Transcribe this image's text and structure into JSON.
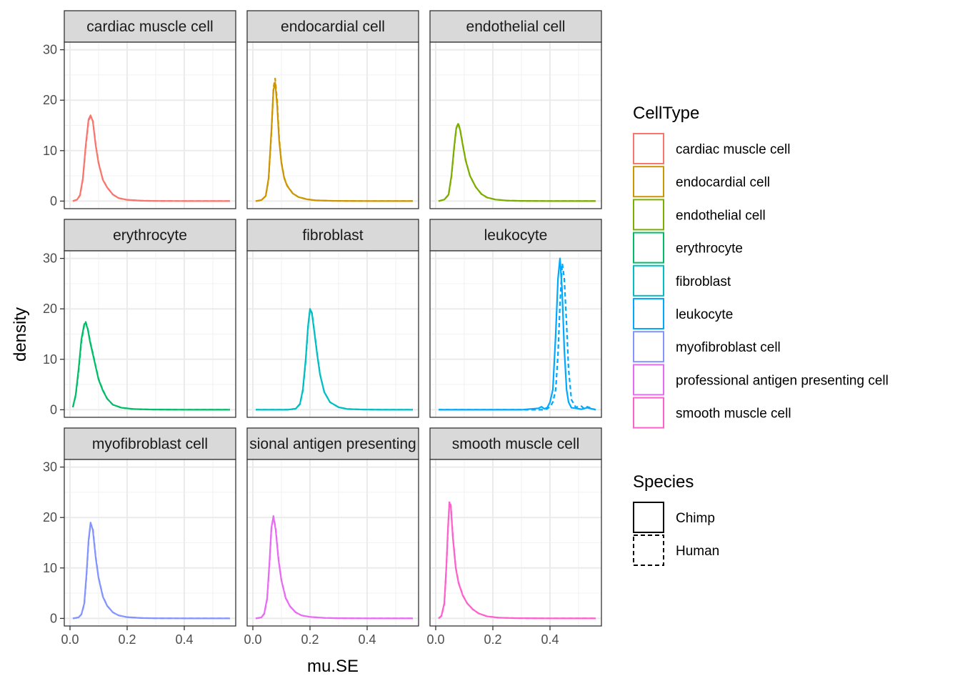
{
  "chart_data": {
    "type": "line",
    "subtype": "density-facets",
    "title": "",
    "xlabel": "mu.SE",
    "ylabel": "density",
    "xlim": [
      -0.02,
      0.58
    ],
    "ylim": [
      -1.5,
      31.5
    ],
    "x_ticks": [
      0.0,
      0.2,
      0.4
    ],
    "x_tick_labels": [
      "0.0",
      "0.2",
      "0.4"
    ],
    "y_ticks": [
      0,
      10,
      20,
      30
    ],
    "y_tick_labels": [
      "0",
      "10",
      "20",
      "30"
    ],
    "grid": true,
    "legend_position": "right",
    "facets": [
      {
        "label": "cardiac muscle cell",
        "series": [
          {
            "name": "Chimp",
            "x": [
              0.01,
              0.025,
              0.035,
              0.045,
              0.055,
              0.065,
              0.072,
              0.08,
              0.09,
              0.1,
              0.115,
              0.13,
              0.15,
              0.17,
              0.2,
              0.25,
              0.3,
              0.4,
              0.5,
              0.56
            ],
            "y": [
              0,
              0.3,
              1.2,
              4.5,
              11,
              16.2,
              17,
              15.8,
              11,
              7.5,
              4.2,
              2.7,
              1.3,
              0.6,
              0.25,
              0.08,
              0.03,
              0.01,
              0,
              0
            ]
          },
          {
            "name": "Human",
            "x": [
              0.01,
              0.025,
              0.035,
              0.045,
              0.055,
              0.065,
              0.072,
              0.08,
              0.09,
              0.1,
              0.115,
              0.13,
              0.15,
              0.17,
              0.2,
              0.25,
              0.3,
              0.4,
              0.5,
              0.56
            ],
            "y": [
              0,
              0.3,
              1.1,
              4.3,
              10.6,
              15.9,
              16.8,
              15.9,
              11.2,
              7.6,
              4.3,
              2.7,
              1.3,
              0.6,
              0.25,
              0.08,
              0.03,
              0.01,
              0,
              0
            ]
          }
        ]
      },
      {
        "label": "endocardial cell",
        "series": [
          {
            "name": "Chimp",
            "x": [
              0.01,
              0.03,
              0.045,
              0.055,
              0.065,
              0.072,
              0.078,
              0.085,
              0.092,
              0.1,
              0.11,
              0.12,
              0.14,
              0.16,
              0.19,
              0.22,
              0.28,
              0.35,
              0.45,
              0.56
            ],
            "y": [
              0,
              0.2,
              1,
              4.5,
              14,
              22,
              23.5,
              19,
              12,
              7.5,
              4.5,
              3,
              1.5,
              0.8,
              0.35,
              0.15,
              0.05,
              0.02,
              0,
              0
            ]
          },
          {
            "name": "Human",
            "x": [
              0.01,
              0.03,
              0.045,
              0.055,
              0.065,
              0.072,
              0.078,
              0.085,
              0.092,
              0.1,
              0.11,
              0.12,
              0.14,
              0.16,
              0.19,
              0.22,
              0.28,
              0.35,
              0.45,
              0.56
            ],
            "y": [
              0,
              0.2,
              1,
              4.2,
              13.5,
              22.5,
              24.3,
              20,
              12.5,
              7.7,
              4.6,
              3.1,
              1.5,
              0.8,
              0.35,
              0.15,
              0.05,
              0.02,
              0,
              0
            ]
          }
        ]
      },
      {
        "label": "endothelial cell",
        "series": [
          {
            "name": "Chimp",
            "x": [
              0.01,
              0.03,
              0.045,
              0.055,
              0.065,
              0.072,
              0.078,
              0.085,
              0.095,
              0.105,
              0.12,
              0.14,
              0.16,
              0.18,
              0.21,
              0.25,
              0.3,
              0.4,
              0.5,
              0.56
            ],
            "y": [
              0,
              0.3,
              1.3,
              5,
              11,
              14.5,
              15.3,
              14.2,
              11,
              8,
              5,
              2.8,
              1.4,
              0.7,
              0.3,
              0.1,
              0.04,
              0.01,
              0,
              0
            ]
          },
          {
            "name": "Human",
            "x": [
              0.01,
              0.03,
              0.045,
              0.055,
              0.065,
              0.072,
              0.078,
              0.085,
              0.095,
              0.105,
              0.12,
              0.14,
              0.16,
              0.18,
              0.21,
              0.25,
              0.3,
              0.4,
              0.5,
              0.56
            ],
            "y": [
              0,
              0.3,
              1.2,
              4.8,
              10.8,
              14.3,
              15.5,
              14.4,
              11.1,
              8.1,
              5,
              2.8,
              1.4,
              0.7,
              0.3,
              0.1,
              0.04,
              0.01,
              0,
              0
            ]
          }
        ]
      },
      {
        "label": "erythrocyte",
        "series": [
          {
            "name": "Chimp",
            "x": [
              0.01,
              0.02,
              0.03,
              0.04,
              0.05,
              0.055,
              0.062,
              0.07,
              0.08,
              0.09,
              0.1,
              0.115,
              0.13,
              0.15,
              0.18,
              0.22,
              0.28,
              0.35,
              0.45,
              0.56
            ],
            "y": [
              0.5,
              3,
              8,
              14,
              17,
              17.2,
              16,
              13.5,
              11,
              8.5,
              6,
              3.8,
              2.2,
              1,
              0.4,
              0.15,
              0.05,
              0.02,
              0,
              0
            ]
          },
          {
            "name": "Human",
            "x": [
              0.01,
              0.02,
              0.03,
              0.04,
              0.05,
              0.055,
              0.062,
              0.07,
              0.08,
              0.09,
              0.1,
              0.115,
              0.13,
              0.15,
              0.18,
              0.22,
              0.28,
              0.35,
              0.45,
              0.56
            ],
            "y": [
              0.5,
              2.8,
              7.6,
              13.6,
              16.8,
              17.4,
              16.2,
              13.7,
              11.2,
              8.6,
              6.1,
              3.9,
              2.2,
              1,
              0.4,
              0.15,
              0.05,
              0.02,
              0,
              0
            ]
          }
        ]
      },
      {
        "label": "fibroblast",
        "series": [
          {
            "name": "Chimp",
            "x": [
              0.01,
              0.12,
              0.15,
              0.165,
              0.175,
              0.185,
              0.193,
              0.2,
              0.207,
              0.215,
              0.225,
              0.235,
              0.25,
              0.27,
              0.3,
              0.33,
              0.38,
              0.45,
              0.5,
              0.56
            ],
            "y": [
              0,
              0,
              0.2,
              1.2,
              4,
              10,
              16.5,
              20,
              19,
              15.5,
              11,
              7,
              3.5,
              1.5,
              0.5,
              0.15,
              0.05,
              0.01,
              0,
              0
            ]
          },
          {
            "name": "Human",
            "x": [
              0.01,
              0.12,
              0.15,
              0.165,
              0.175,
              0.185,
              0.193,
              0.2,
              0.207,
              0.215,
              0.225,
              0.235,
              0.25,
              0.27,
              0.3,
              0.33,
              0.38,
              0.45,
              0.5,
              0.56
            ],
            "y": [
              0,
              0,
              0.2,
              1.1,
              3.8,
              9.7,
              16.2,
              19.9,
              19.2,
              15.7,
              11.1,
              7.1,
              3.5,
              1.5,
              0.5,
              0.15,
              0.05,
              0.01,
              0,
              0
            ]
          }
        ]
      },
      {
        "label": "leukocyte",
        "series": [
          {
            "name": "Chimp",
            "x": [
              0.01,
              0.3,
              0.36,
              0.37,
              0.38,
              0.39,
              0.4,
              0.41,
              0.42,
              0.428,
              0.435,
              0.442,
              0.45,
              0.458,
              0.465,
              0.475,
              0.49,
              0.51,
              0.53,
              0.56
            ],
            "y": [
              0,
              0,
              0.3,
              0.6,
              0.2,
              0.4,
              1.5,
              4,
              15,
              26,
              30,
              24,
              12,
              4,
              1.5,
              0.4,
              0.3,
              0.1,
              0.4,
              0
            ]
          },
          {
            "name": "Human",
            "x": [
              0.01,
              0.3,
              0.38,
              0.39,
              0.4,
              0.41,
              0.42,
              0.428,
              0.435,
              0.443,
              0.45,
              0.458,
              0.465,
              0.475,
              0.49,
              0.51,
              0.52,
              0.53,
              0.545,
              0.56
            ],
            "y": [
              0,
              0,
              0,
              0.2,
              0.6,
              1.5,
              4,
              11,
              21,
              29,
              26,
              17,
              8,
              2,
              0.5,
              0.7,
              0.2,
              0.6,
              0.3,
              0
            ]
          }
        ]
      },
      {
        "label": "myofibroblast cell",
        "series": [
          {
            "name": "Chimp",
            "x": [
              0.01,
              0.03,
              0.04,
              0.05,
              0.058,
              0.065,
              0.072,
              0.08,
              0.09,
              0.1,
              0.115,
              0.13,
              0.15,
              0.17,
              0.2,
              0.25,
              0.3,
              0.4,
              0.5,
              0.56
            ],
            "y": [
              0,
              0.2,
              0.8,
              3,
              9,
              15.5,
              19,
              17.5,
              12,
              8,
              4.3,
              2.5,
              1.2,
              0.6,
              0.25,
              0.08,
              0.03,
              0.01,
              0,
              0
            ]
          },
          {
            "name": "Human",
            "x": [
              0.01,
              0.03,
              0.04,
              0.05,
              0.058,
              0.065,
              0.072,
              0.08,
              0.09,
              0.1,
              0.115,
              0.13,
              0.15,
              0.17,
              0.2,
              0.25,
              0.3,
              0.4,
              0.5,
              0.56
            ],
            "y": [
              0,
              0.2,
              0.8,
              2.8,
              8.6,
              15.2,
              18.8,
              17.8,
              12.2,
              8.1,
              4.4,
              2.5,
              1.2,
              0.6,
              0.25,
              0.08,
              0.03,
              0.01,
              0,
              0
            ]
          }
        ]
      },
      {
        "label": "professional antigen presenting cell",
        "display_label": "sional antigen presenting",
        "series": [
          {
            "name": "Chimp",
            "x": [
              0.01,
              0.03,
              0.04,
              0.05,
              0.058,
              0.065,
              0.072,
              0.08,
              0.09,
              0.1,
              0.115,
              0.13,
              0.15,
              0.17,
              0.2,
              0.25,
              0.3,
              0.4,
              0.5,
              0.56
            ],
            "y": [
              0,
              0.2,
              1,
              4,
              11,
              18,
              20.2,
              17.5,
              11.5,
              7.5,
              4,
              2.4,
              1.2,
              0.6,
              0.3,
              0.1,
              0.04,
              0.01,
              0,
              0
            ]
          },
          {
            "name": "Human",
            "x": [
              0.01,
              0.03,
              0.04,
              0.05,
              0.058,
              0.065,
              0.072,
              0.08,
              0.09,
              0.1,
              0.115,
              0.13,
              0.15,
              0.17,
              0.2,
              0.25,
              0.3,
              0.4,
              0.5,
              0.56
            ],
            "y": [
              0,
              0.2,
              0.9,
              3.8,
              10.6,
              17.7,
              20.3,
              17.8,
              11.7,
              7.6,
              4.1,
              2.4,
              1.2,
              0.6,
              0.3,
              0.1,
              0.04,
              0.01,
              0,
              0
            ]
          }
        ]
      },
      {
        "label": "smooth muscle cell",
        "series": [
          {
            "name": "Chimp",
            "x": [
              0.01,
              0.02,
              0.03,
              0.037,
              0.043,
              0.048,
              0.053,
              0.06,
              0.07,
              0.08,
              0.095,
              0.11,
              0.13,
              0.15,
              0.18,
              0.22,
              0.28,
              0.35,
              0.45,
              0.56
            ],
            "y": [
              0,
              0.5,
              3,
              10,
              18,
              23,
              22,
              16,
              10,
              7,
              4.5,
              3,
              1.8,
              1,
              0.4,
              0.15,
              0.05,
              0.02,
              0,
              0
            ]
          },
          {
            "name": "Human",
            "x": [
              0.01,
              0.02,
              0.03,
              0.037,
              0.043,
              0.048,
              0.053,
              0.06,
              0.07,
              0.08,
              0.095,
              0.11,
              0.13,
              0.15,
              0.18,
              0.22,
              0.28,
              0.35,
              0.45,
              0.56
            ],
            "y": [
              0,
              0.5,
              2.8,
              9.6,
              17.6,
              23.2,
              22.4,
              16.3,
              10.2,
              7.1,
              4.6,
              3,
              1.8,
              1,
              0.4,
              0.15,
              0.05,
              0.02,
              0,
              0
            ]
          }
        ]
      }
    ],
    "legends": [
      {
        "title": "CellType",
        "items": [
          {
            "label": "cardiac muscle cell",
            "color": "#F8766D"
          },
          {
            "label": "endocardial cell",
            "color": "#CD9600"
          },
          {
            "label": "endothelial cell",
            "color": "#7CAE00"
          },
          {
            "label": "erythrocyte",
            "color": "#00BE67"
          },
          {
            "label": "fibroblast",
            "color": "#00BFC4"
          },
          {
            "label": "leukocyte",
            "color": "#00A9FF"
          },
          {
            "label": "myofibroblast cell",
            "color": "#8494FF"
          },
          {
            "label": "professional antigen presenting cell",
            "color": "#E76BF3"
          },
          {
            "label": "smooth muscle cell",
            "color": "#FF61CC"
          }
        ]
      },
      {
        "title": "Species",
        "items": [
          {
            "label": "Chimp",
            "linetype": "solid"
          },
          {
            "label": "Human",
            "linetype": "dashed"
          }
        ]
      }
    ]
  }
}
